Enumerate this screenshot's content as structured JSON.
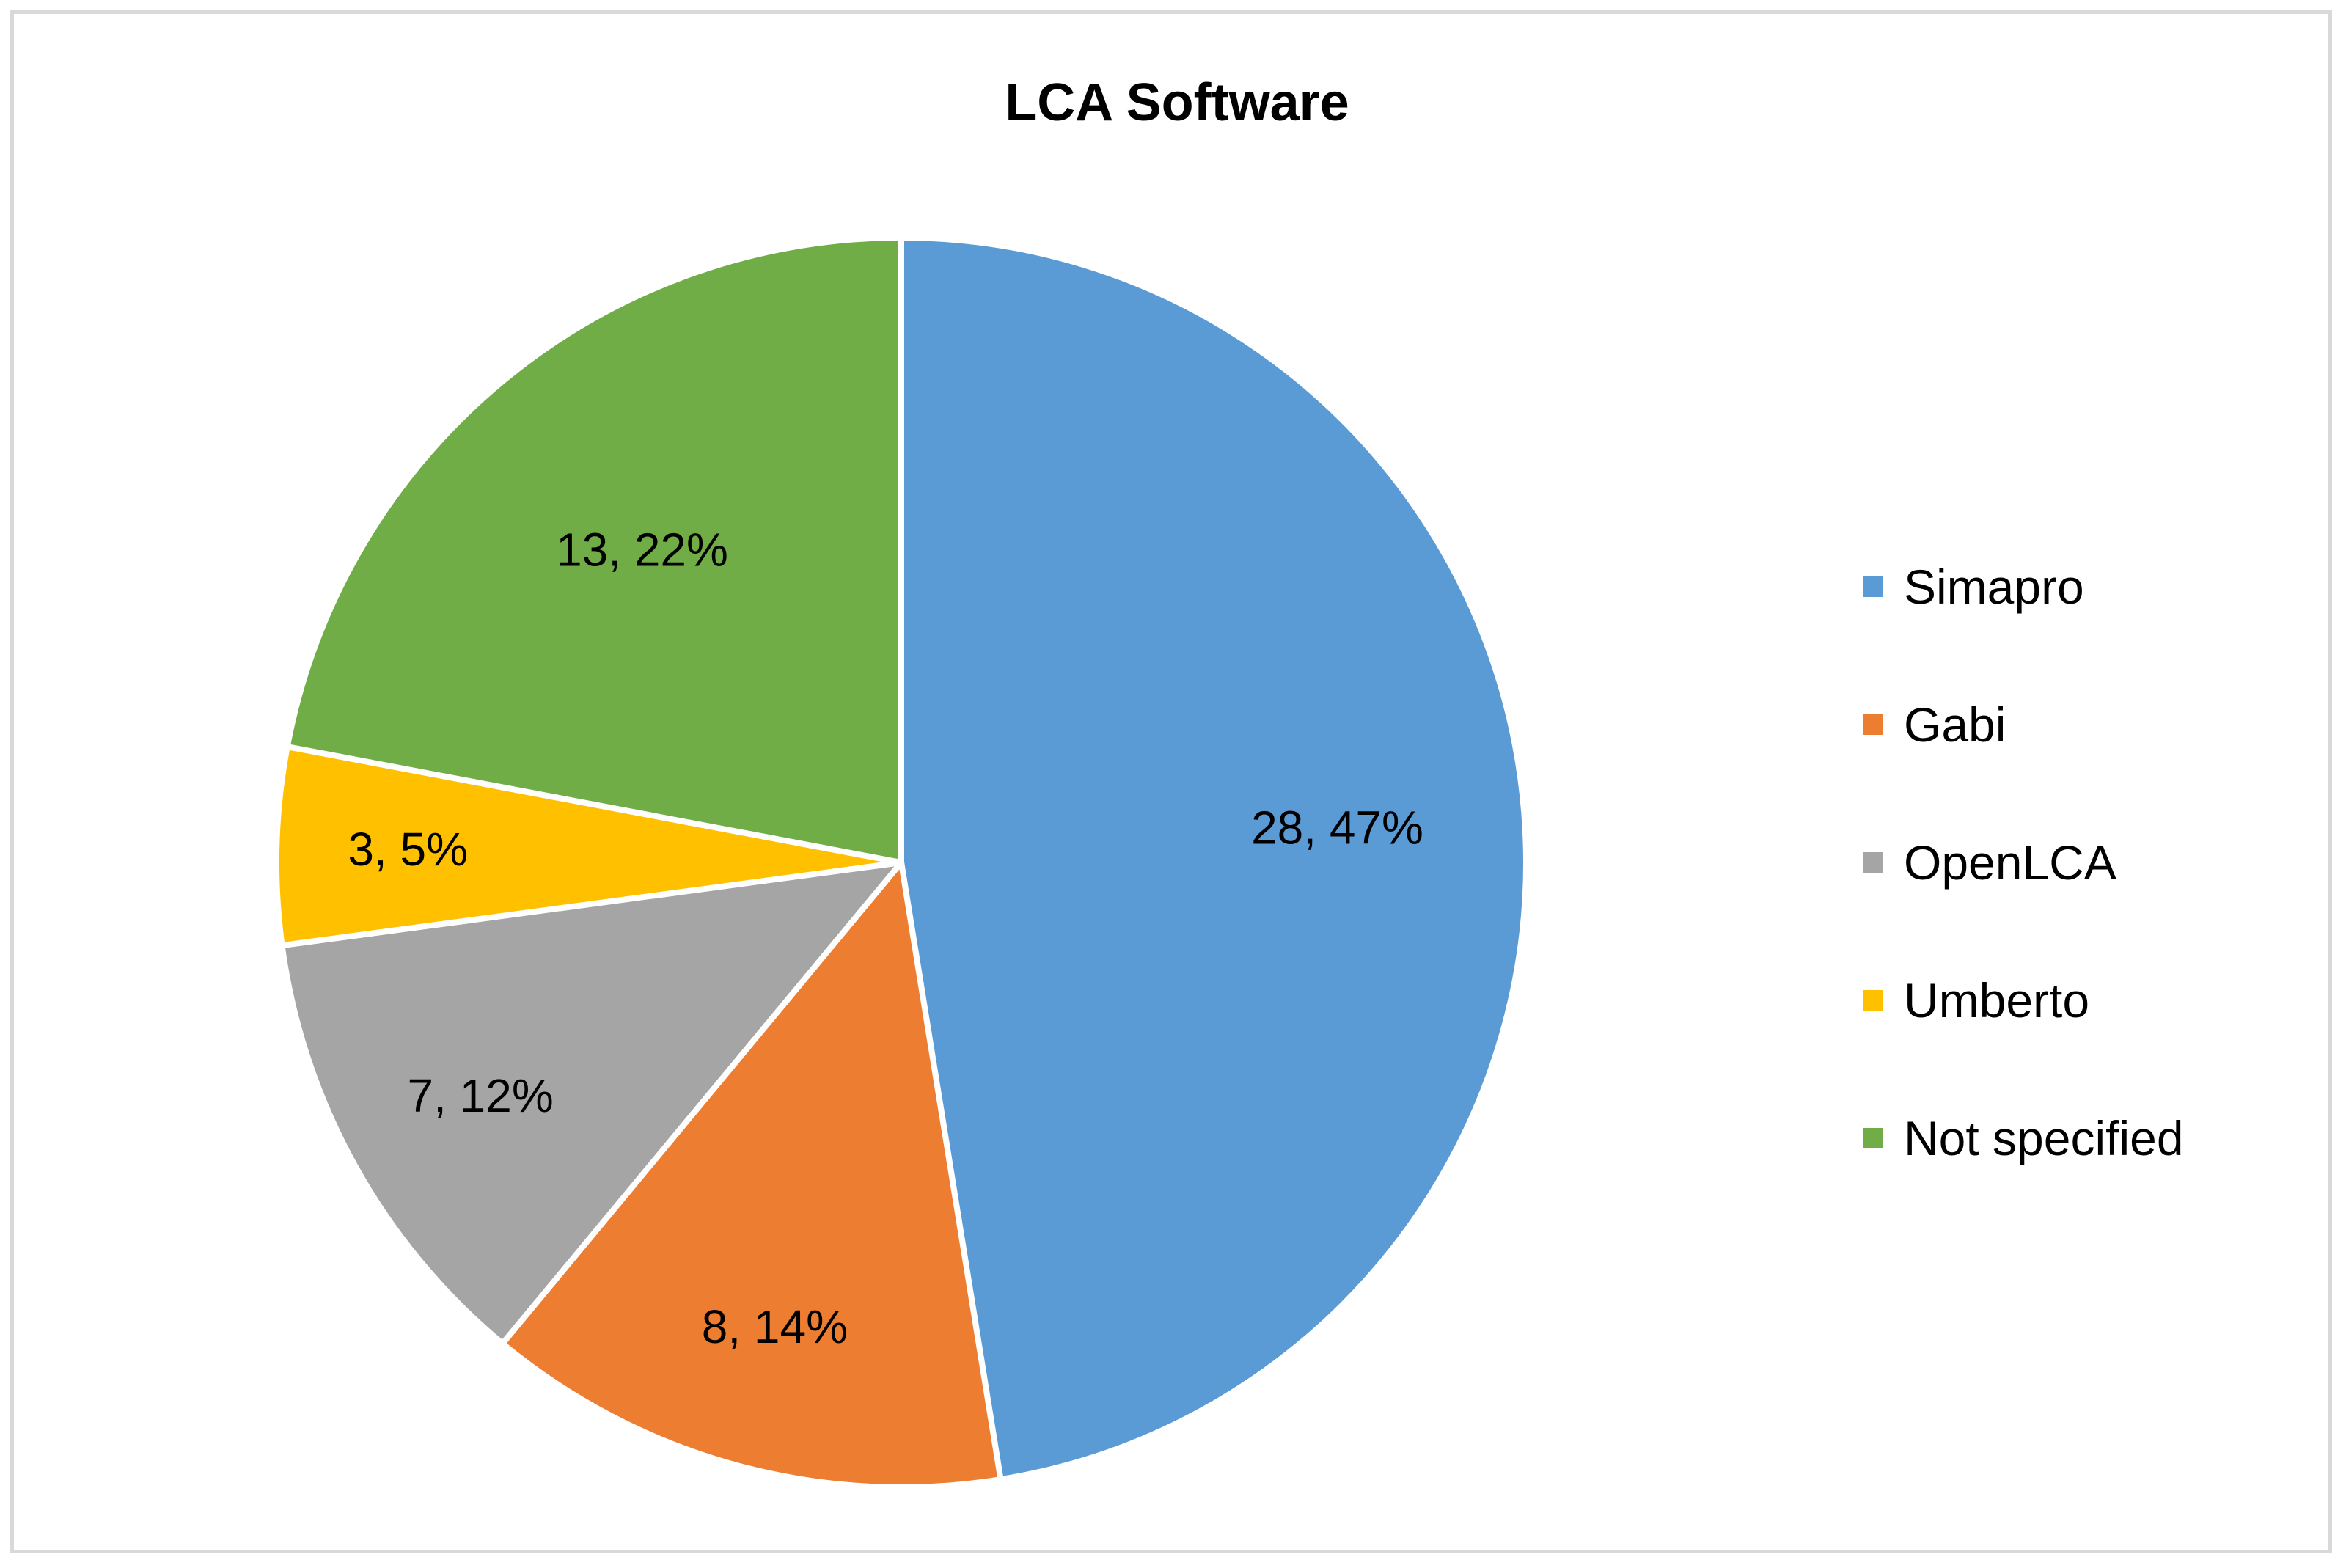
{
  "chart_data": {
    "type": "pie",
    "title": "LCA Software",
    "categories": [
      "Simapro",
      "Gabi",
      "OpenLCA",
      "Umberto",
      "Not specified"
    ],
    "values": [
      28,
      8,
      7,
      3,
      13
    ],
    "percentages": [
      "47%",
      "14%",
      "12%",
      "5%",
      "22%"
    ],
    "data_labels": [
      "28, 47%",
      "8, 14%",
      "7, 12%",
      "3, 5%",
      "13, 22%"
    ],
    "colors": [
      "#5b9bd5",
      "#ed7d31",
      "#a5a5a5",
      "#ffc000",
      "#70ad47"
    ],
    "start_angle_deg": 0,
    "direction": "clockwise",
    "legend_position": "right"
  }
}
